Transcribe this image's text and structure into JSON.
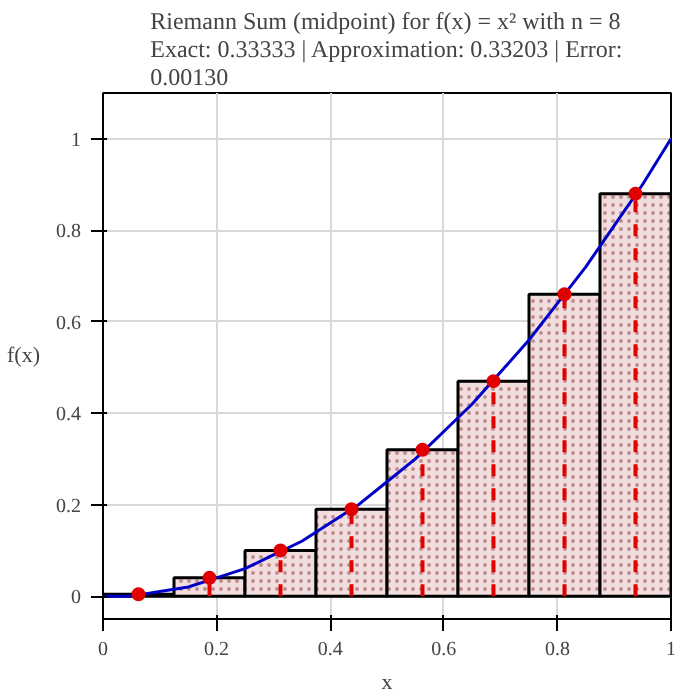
{
  "chart_data": {
    "type": "bar",
    "title": "Riemann Sum (midpoint) for f(x) = x² with n = 8",
    "subtitle": "Exact: 0.33333 | Approximation: 0.33203 | Error: 0.00130",
    "xlabel": "x",
    "ylabel": "f(x)",
    "xlim": [
      0,
      1
    ],
    "ylim": [
      -0.05,
      1.1
    ],
    "xticks": [
      0,
      0.2,
      0.4,
      0.6,
      0.8,
      1
    ],
    "yticks": [
      0,
      0.2,
      0.4,
      0.6,
      0.8,
      1
    ],
    "grid": true,
    "series": [
      {
        "color": "#f2dede",
        "x": [
          0.0625,
          0.1875,
          0.3125,
          0.4375,
          0.5625,
          0.6875,
          0.8125,
          0.9375
        ],
        "values": [
          0.004,
          0.04,
          0.1,
          0.19,
          0.32,
          0.47,
          0.66,
          0.88
        ]
      },
      {
        "type": "line",
        "color": "#0000c8",
        "line_style": "solid",
        "marker": "none",
        "x": [
          0,
          0.05,
          0.1,
          0.15,
          0.2,
          0.25,
          0.3,
          0.35,
          0.4,
          0.45,
          0.5,
          0.55,
          0.6,
          0.65,
          0.7,
          0.75,
          0.8,
          0.85,
          0.9,
          0.95,
          1
        ],
        "values": [
          0,
          0.0,
          0.01,
          0.02,
          0.04,
          0.06,
          0.09,
          0.12,
          0.16,
          0.2,
          0.25,
          0.3,
          0.36,
          0.42,
          0.49,
          0.56,
          0.64,
          0.72,
          0.81,
          0.9,
          1
        ]
      },
      {
        "type": "lollipop",
        "color": "#e00000",
        "line_style": "dashed",
        "marker": "circle",
        "x": [
          0.0625,
          0.1875,
          0.3125,
          0.4375,
          0.5625,
          0.6875,
          0.8125,
          0.9375
        ],
        "values": [
          0.004,
          0.04,
          0.1,
          0.19,
          0.32,
          0.47,
          0.66,
          0.88
        ]
      }
    ]
  }
}
